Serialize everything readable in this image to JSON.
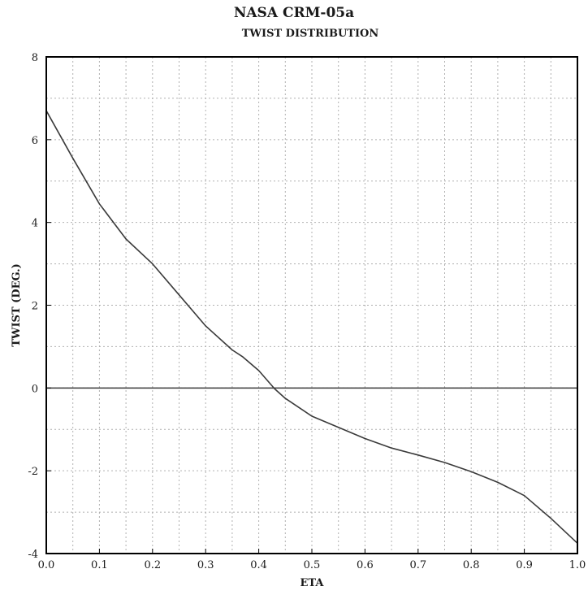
{
  "chart_data": {
    "type": "line",
    "title": "NASA CRM-05a",
    "subtitle": "TWIST DISTRIBUTION",
    "xlabel": "ETA",
    "ylabel": "TWIST (DEG.)",
    "xlim": [
      0.0,
      1.0
    ],
    "ylim": [
      -4,
      8
    ],
    "xticks": [
      "0.0",
      "0.1",
      "0.2",
      "0.3",
      "0.4",
      "0.5",
      "0.6",
      "0.7",
      "0.8",
      "0.9",
      "1.0"
    ],
    "yticks": [
      "-4",
      "-2",
      "0",
      "2",
      "4",
      "6",
      "8"
    ],
    "grid": true,
    "x": [
      0.0,
      0.05,
      0.1,
      0.15,
      0.2,
      0.25,
      0.3,
      0.35,
      0.37,
      0.4,
      0.43,
      0.45,
      0.5,
      0.55,
      0.6,
      0.65,
      0.7,
      0.75,
      0.8,
      0.85,
      0.9,
      0.95,
      1.0
    ],
    "series": [
      {
        "values": [
          6.7,
          5.55,
          4.45,
          3.6,
          3.0,
          2.25,
          1.5,
          0.92,
          0.75,
          0.42,
          -0.02,
          -0.25,
          -0.68,
          -0.95,
          -1.22,
          -1.45,
          -1.62,
          -1.8,
          -2.02,
          -2.28,
          -2.6,
          -3.15,
          -3.75
        ]
      }
    ],
    "colors": {
      "line": "#3a3a3a",
      "frame": "#000000",
      "grid": "#b0b0b0"
    }
  }
}
